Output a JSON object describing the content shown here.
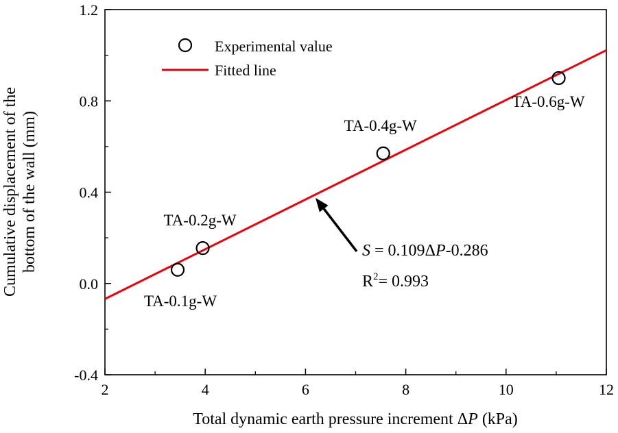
{
  "chart_data": {
    "type": "scatter",
    "xlabel_prefix": "Total dynamic earth pressure increment Δ",
    "xlabel_var": "P",
    "xlabel_suffix": " (kPa)",
    "ylabel_line1": "Cumulative displacement of the",
    "ylabel_line2": "bottom of the wall (mm)",
    "xlim": [
      2,
      12
    ],
    "ylim": [
      -0.4,
      1.2
    ],
    "xticks": [
      2,
      4,
      6,
      8,
      10,
      12
    ],
    "xtick_labels": [
      "2",
      "4",
      "6",
      "8",
      "10",
      "12"
    ],
    "yticks": [
      -0.4,
      0.0,
      0.4,
      0.8,
      1.2
    ],
    "ytick_labels": [
      "-0.4",
      "0.0",
      "0.4",
      "0.8",
      "1.2"
    ],
    "grid": false,
    "legend_position": "top-left",
    "series": [
      {
        "name": "Experimental value",
        "marker": "open-circle",
        "points": [
          {
            "x": 3.45,
            "y": 0.06,
            "label": "TA-0.1g-W"
          },
          {
            "x": 3.95,
            "y": 0.155,
            "label": "TA-0.2g-W"
          },
          {
            "x": 7.55,
            "y": 0.57,
            "label": "TA-0.4g-W"
          },
          {
            "x": 11.05,
            "y": 0.9,
            "label": "TA-0.6g-W"
          }
        ]
      },
      {
        "name": "Fitted line",
        "color": "#e8000b",
        "slope": 0.109,
        "intercept": -0.286,
        "x_range": [
          2,
          12
        ]
      }
    ],
    "annotation": {
      "eq_var": "S",
      "eq_mid": " = 0.109Δ",
      "eq_var2": "P",
      "eq_end": "-0.286",
      "r2_prefix": "R",
      "r2_sup": "2",
      "r2_value": "= 0.993",
      "arrow_target_x": 6.2
    }
  }
}
